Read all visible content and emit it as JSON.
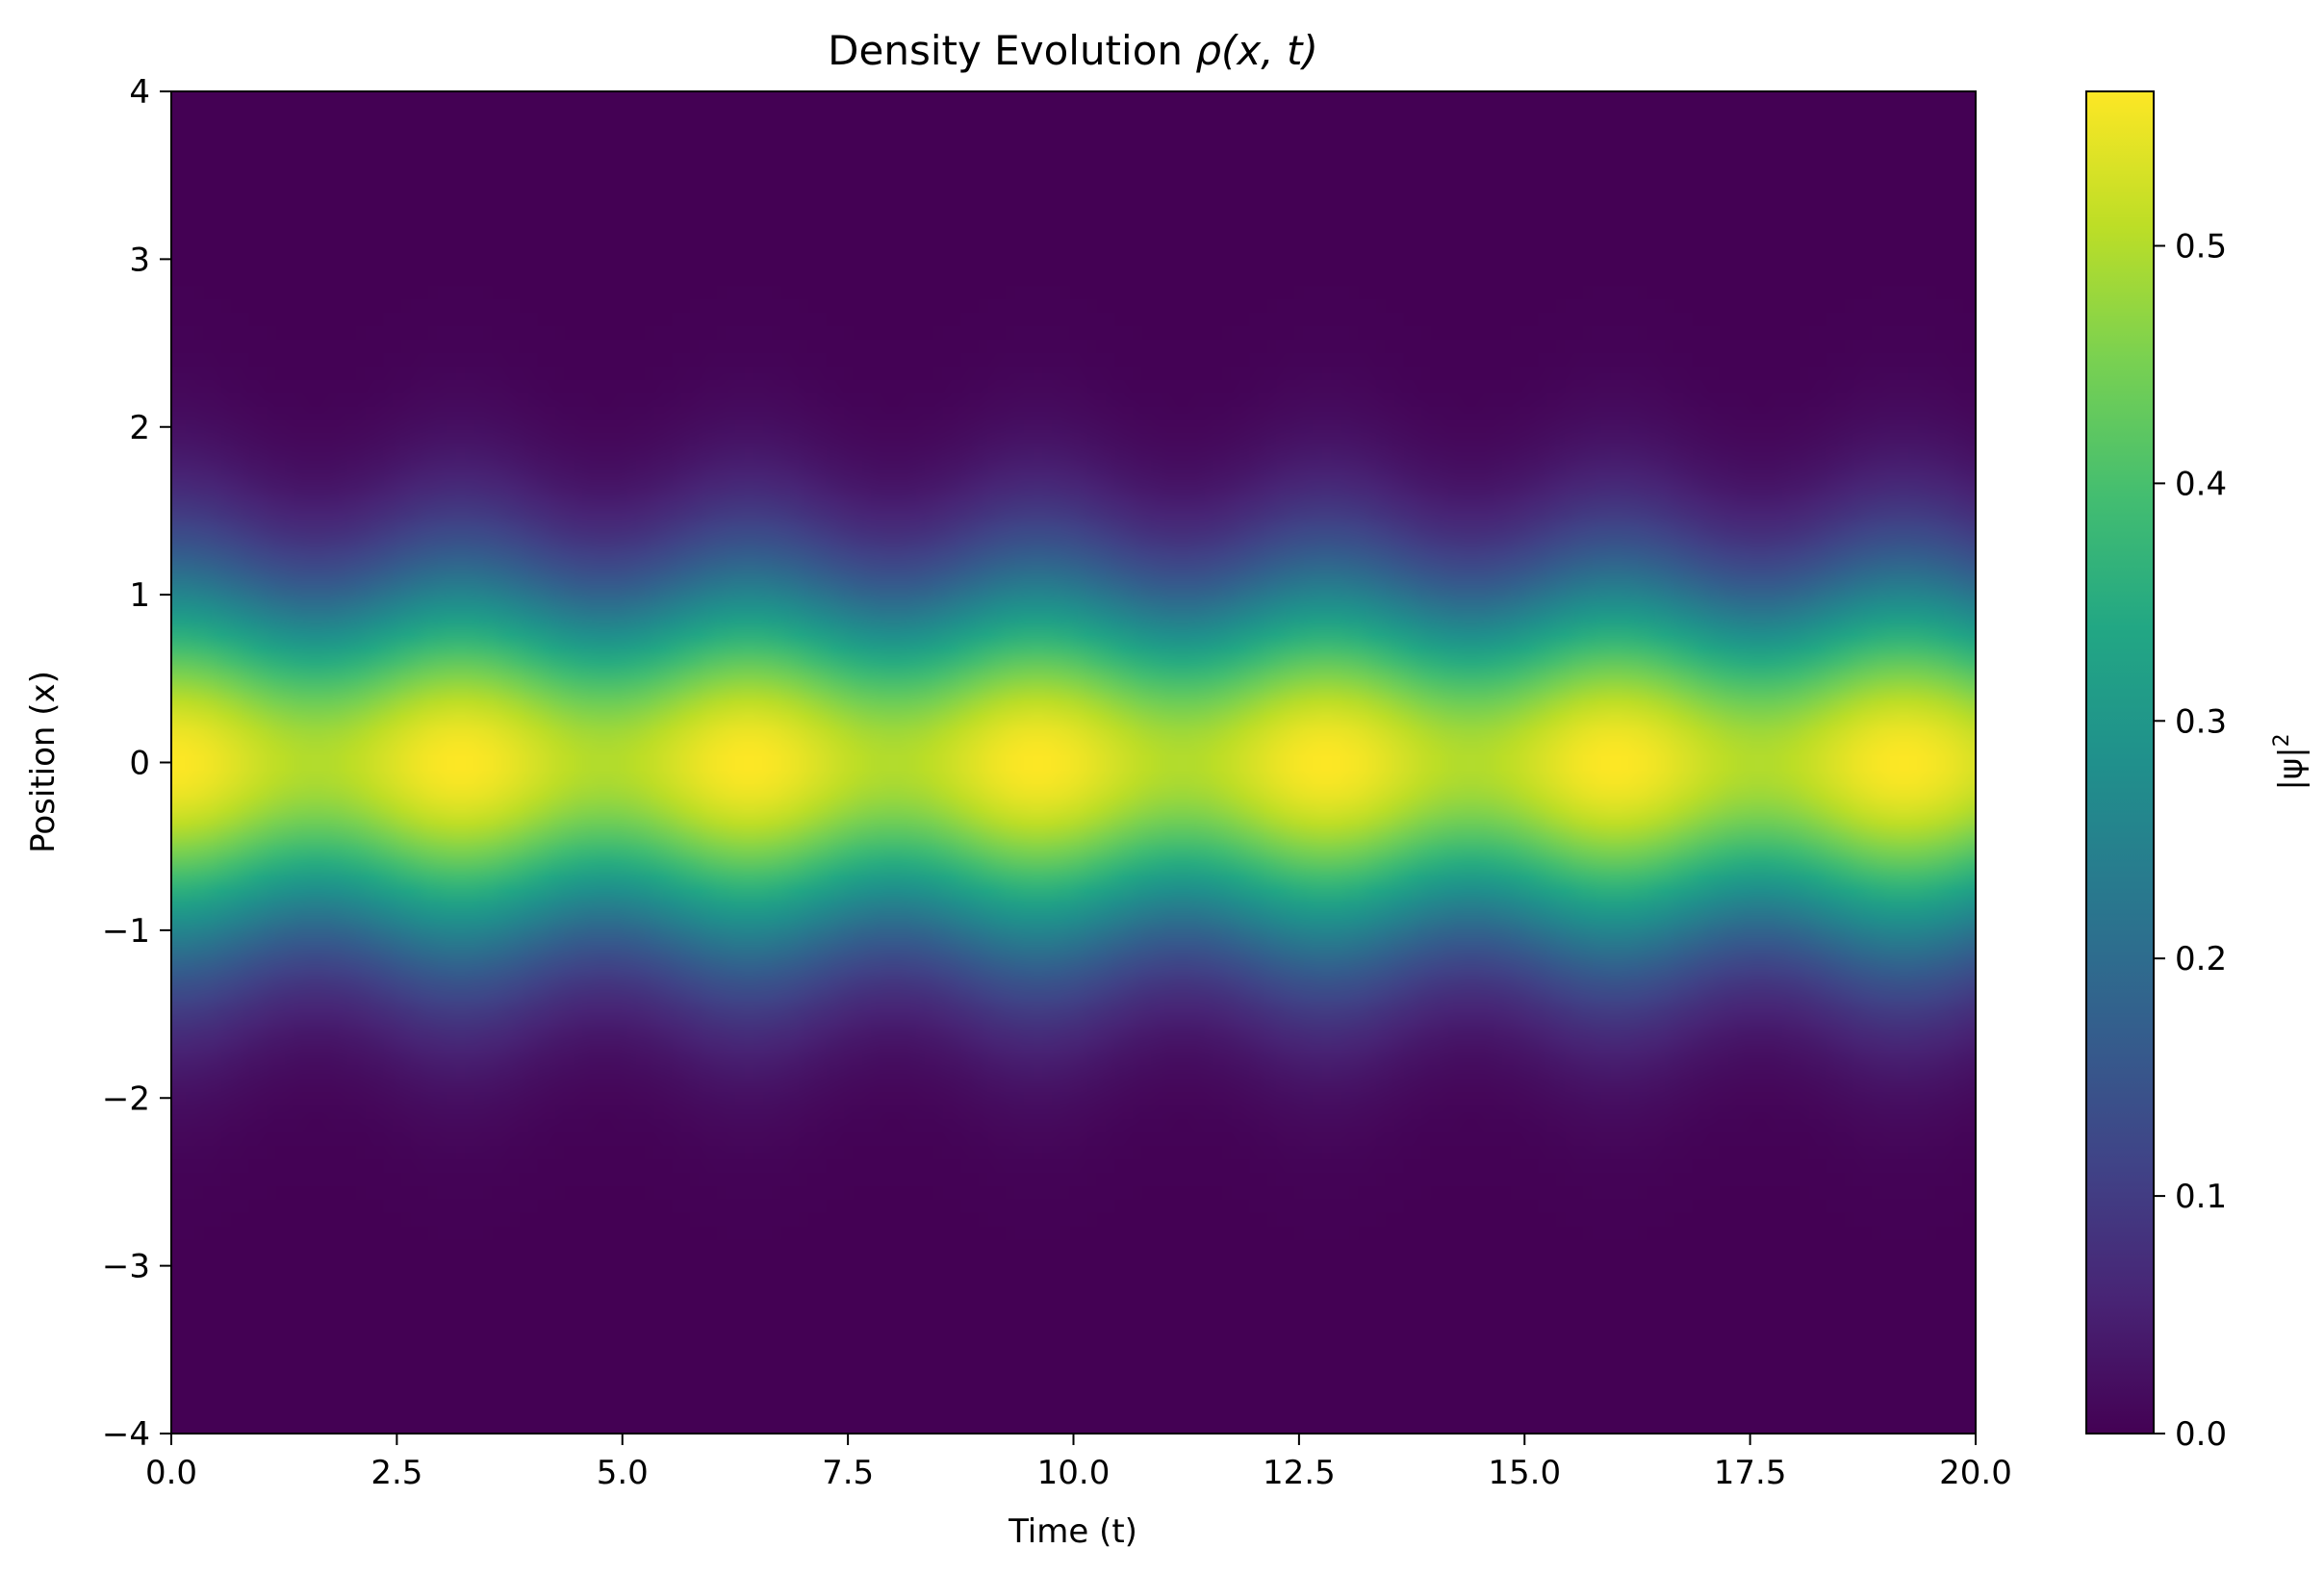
{
  "chart_data": {
    "type": "heatmap",
    "title_parts": {
      "prefix": "Density Evolution ",
      "rho": "ρ",
      "args": "(x, t)"
    },
    "xlabel": "Time (t)",
    "ylabel": "Position (x)",
    "colorbar_label": "|ψ|²",
    "colorbar_label_parts": {
      "base": "|ψ|",
      "sup": "2"
    },
    "colormap": "viridis",
    "xlim": [
      0,
      20
    ],
    "ylim": [
      -4,
      4
    ],
    "clim": [
      0,
      0.565
    ],
    "x_ticks": [
      0,
      2.5,
      5,
      7.5,
      10,
      12.5,
      15,
      17.5,
      20
    ],
    "x_tick_labels": [
      "0.0",
      "2.5",
      "5.0",
      "7.5",
      "10.0",
      "12.5",
      "15.0",
      "17.5",
      "20.0"
    ],
    "y_ticks": [
      -4,
      -3,
      -2,
      -1,
      0,
      1,
      2,
      3,
      4
    ],
    "y_tick_labels": [
      "−4",
      "−3",
      "−2",
      "−1",
      "0",
      "1",
      "2",
      "3",
      "4"
    ],
    "colorbar_ticks": [
      0,
      0.1,
      0.2,
      0.3,
      0.4,
      0.5
    ],
    "colorbar_tick_labels": [
      "0.0",
      "0.1",
      "0.2",
      "0.3",
      "0.4",
      "0.5"
    ],
    "pattern": {
      "description_values": "Gaussian density centered at x = 0 whose peak oscillates between ~0.50 and ~0.565 with period ~3.2",
      "peak_times": [
        3.2,
        6.4,
        9.6,
        12.8,
        16.0,
        19.2
      ],
      "peak_max": 0.565,
      "peak_min": 0.5,
      "period": 3.2
    },
    "grid": false
  }
}
